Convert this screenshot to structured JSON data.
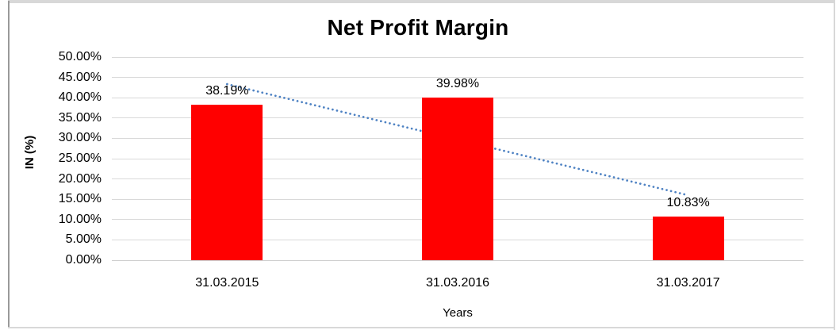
{
  "chart_data": {
    "type": "bar",
    "title": "Net Profit Margin",
    "categories": [
      "31.03.2015",
      "31.03.2016",
      "31.03.2017"
    ],
    "values": [
      38.19,
      39.98,
      10.83
    ],
    "data_labels": [
      "38.19%",
      "39.98%",
      "10.83%"
    ],
    "xlabel": "Years",
    "ylabel": "IN (%)",
    "ylim": [
      0,
      50
    ],
    "ytick_step": 5,
    "ytick_labels": [
      "0.00%",
      "5.00%",
      "10.00%",
      "15.00%",
      "20.00%",
      "25.00%",
      "30.00%",
      "35.00%",
      "40.00%",
      "45.00%",
      "50.00%"
    ],
    "grid": true,
    "legend": false,
    "bar_color": "#FF0000",
    "text_color": "#000000",
    "gridline_color": "#D9D9D9",
    "axis_line_color": "#CFCFCF",
    "trendline": {
      "type": "linear",
      "style": "dotted",
      "color": "#4E82C3",
      "start_value": 43.35,
      "end_value": 15.99
    }
  }
}
